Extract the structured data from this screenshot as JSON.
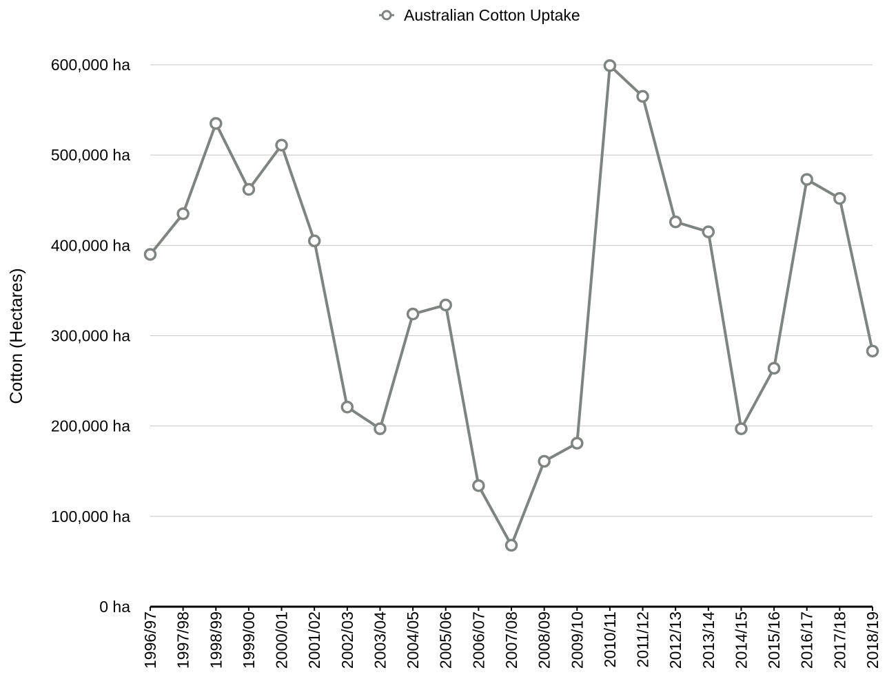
{
  "chart_data": {
    "type": "line",
    "title": "",
    "xlabel": "",
    "ylabel": "Cotton (Hectares)",
    "ylim": [
      0,
      600000
    ],
    "yticks": [
      0,
      100000,
      200000,
      300000,
      400000,
      500000,
      600000
    ],
    "ytick_labels": [
      "0 ha",
      "100,000 ha",
      "200,000 ha",
      "300,000 ha",
      "400,000 ha",
      "500,000 ha",
      "600,000 ha"
    ],
    "grid": true,
    "legend_position": "top-center",
    "categories": [
      "1996/97",
      "1997/98",
      "1998/99",
      "1999/00",
      "2000/01",
      "2001/02",
      "2002/03",
      "2003/04",
      "2004/05",
      "2005/06",
      "2006/07",
      "2007/08",
      "2008/09",
      "2009/10",
      "2010/11",
      "2011/12",
      "2012/13",
      "2013/14",
      "2014/15",
      "2015/16",
      "2016/17",
      "2017/18",
      "2018/19"
    ],
    "series": [
      {
        "name": "Australian Cotton Uptake",
        "color": "#7f8480",
        "marker": "open-circle",
        "values": [
          390000,
          435000,
          535000,
          462000,
          511000,
          405000,
          221000,
          197000,
          324000,
          334000,
          134000,
          68000,
          161000,
          181000,
          599000,
          565000,
          426000,
          415000,
          197000,
          264000,
          473000,
          452000,
          283000
        ]
      }
    ]
  }
}
